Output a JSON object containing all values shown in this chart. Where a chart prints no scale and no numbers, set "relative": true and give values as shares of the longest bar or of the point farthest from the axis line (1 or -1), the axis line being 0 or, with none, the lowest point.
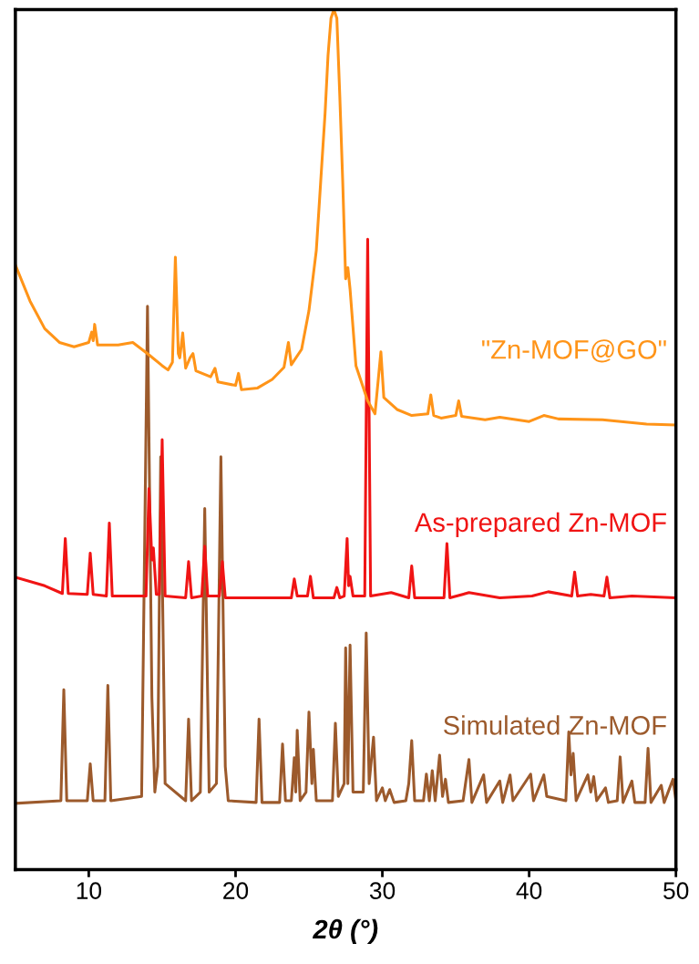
{
  "chart_data": {
    "type": "line",
    "relative": true,
    "xlabel": "2θ (°)",
    "xlim": [
      5,
      50
    ],
    "xticks": [
      10,
      20,
      30,
      40,
      50
    ],
    "grid": false,
    "legend": false,
    "marker": "none",
    "line_style": "solid",
    "series": [
      {
        "name": "Simulated Zn-MOF",
        "color": "#9c5a2c",
        "x": [
          5,
          8.1,
          8.3,
          8.5,
          9.9,
          10.1,
          10.3,
          11.1,
          11.3,
          11.5,
          13.6,
          14.0,
          14.3,
          14.5,
          14.7,
          14.9,
          15.2,
          16.6,
          16.8,
          17.0,
          17.6,
          17.9,
          18.2,
          18.7,
          19.0,
          19.3,
          19.5,
          21.4,
          21.6,
          21.8,
          23.0,
          23.2,
          23.4,
          23.8,
          24.0,
          24.1,
          24.2,
          24.4,
          24.8,
          25.0,
          25.2,
          25.3,
          25.5,
          26.6,
          26.8,
          27.0,
          27.4,
          27.5,
          27.65,
          27.8,
          28.0,
          28.7,
          28.9,
          29.1,
          29.4,
          29.6,
          30.0,
          30.2,
          30.5,
          30.8,
          31.6,
          31.8,
          32.0,
          32.2,
          32.8,
          33.0,
          33.2,
          33.4,
          33.6,
          33.9,
          34.1,
          34.3,
          34.5,
          35.5,
          35.9,
          36.1,
          36.9,
          37.1,
          38.0,
          38.2,
          38.7,
          38.9,
          40.1,
          40.3,
          41.0,
          41.2,
          42.5,
          42.7,
          42.85,
          43.0,
          43.2,
          44.0,
          44.2,
          44.4,
          44.6,
          45.2,
          45.4,
          46.0,
          46.2,
          46.4,
          47.0,
          47.2,
          47.9,
          48.1,
          48.3,
          49.0,
          49.2,
          49.8,
          50
        ],
        "values": [
          0.077,
          0.08,
          0.209,
          0.08,
          0.08,
          0.123,
          0.08,
          0.08,
          0.214,
          0.08,
          0.085,
          0.655,
          0.2,
          0.09,
          0.12,
          0.48,
          0.1,
          0.08,
          0.175,
          0.08,
          0.09,
          0.42,
          0.09,
          0.1,
          0.48,
          0.12,
          0.08,
          0.078,
          0.175,
          0.078,
          0.078,
          0.146,
          0.08,
          0.08,
          0.13,
          0.09,
          0.162,
          0.08,
          0.09,
          0.183,
          0.1,
          0.14,
          0.08,
          0.08,
          0.17,
          0.085,
          0.1,
          0.258,
          0.1,
          0.261,
          0.09,
          0.09,
          0.275,
          0.1,
          0.154,
          0.08,
          0.095,
          0.08,
          0.093,
          0.078,
          0.08,
          0.1,
          0.15,
          0.08,
          0.08,
          0.111,
          0.08,
          0.115,
          0.08,
          0.133,
          0.085,
          0.105,
          0.078,
          0.08,
          0.128,
          0.078,
          0.11,
          0.078,
          0.103,
          0.078,
          0.11,
          0.08,
          0.111,
          0.08,
          0.11,
          0.085,
          0.08,
          0.16,
          0.11,
          0.135,
          0.08,
          0.11,
          0.09,
          0.108,
          0.08,
          0.095,
          0.078,
          0.08,
          0.131,
          0.078,
          0.103,
          0.078,
          0.078,
          0.141,
          0.078,
          0.098,
          0.078,
          0.105,
          0.08
        ]
      },
      {
        "name": "As-prepared Zn-MOF",
        "color": "#f01414",
        "x": [
          5,
          7,
          8.2,
          8.4,
          8.6,
          9.9,
          10.1,
          10.3,
          11.2,
          11.4,
          11.6,
          13.9,
          14.1,
          14.3,
          14.4,
          14.6,
          14.8,
          15.0,
          15.2,
          16.6,
          16.8,
          17.0,
          17.7,
          17.9,
          18.1,
          18.9,
          19.1,
          19.3,
          21.0,
          23.8,
          24.0,
          24.2,
          24.9,
          25.1,
          25.3,
          26.7,
          26.9,
          27.1,
          27.4,
          27.6,
          27.7,
          27.8,
          28.0,
          28.8,
          29.0,
          29.2,
          30.6,
          31.8,
          32.0,
          32.2,
          34.2,
          34.4,
          34.6,
          35.9,
          38,
          40.2,
          41.3,
          42.9,
          43.1,
          43.3,
          44.2,
          45.1,
          45.3,
          45.5,
          47,
          50
        ],
        "values": [
          0.34,
          0.33,
          0.321,
          0.385,
          0.321,
          0.32,
          0.368,
          0.32,
          0.318,
          0.403,
          0.318,
          0.318,
          0.443,
          0.36,
          0.374,
          0.32,
          0.32,
          0.5,
          0.318,
          0.316,
          0.358,
          0.316,
          0.318,
          0.376,
          0.318,
          0.318,
          0.358,
          0.316,
          0.316,
          0.316,
          0.338,
          0.318,
          0.318,
          0.341,
          0.316,
          0.316,
          0.328,
          0.316,
          0.318,
          0.385,
          0.33,
          0.341,
          0.318,
          0.318,
          0.733,
          0.318,
          0.322,
          0.316,
          0.353,
          0.316,
          0.316,
          0.379,
          0.316,
          0.322,
          0.316,
          0.318,
          0.323,
          0.318,
          0.346,
          0.318,
          0.32,
          0.318,
          0.34,
          0.316,
          0.318,
          0.316
        ]
      },
      {
        "name": "\"Zn-MOF@GO\"",
        "color": "#ff9418",
        "x": [
          5,
          6,
          7,
          8,
          9,
          10.0,
          10.2,
          10.3,
          10.4,
          10.6,
          11,
          12,
          13,
          14,
          15,
          15.4,
          15.7,
          15.9,
          16.1,
          16.2,
          16.4,
          16.6,
          16.9,
          17.1,
          17.3,
          18.3,
          18.6,
          18.8,
          20.0,
          20.2,
          20.4,
          21.5,
          22.5,
          23.3,
          23.6,
          23.8,
          24.5,
          25,
          25.5,
          25.8,
          26.1,
          26.3,
          26.5,
          26.7,
          26.9,
          27.1,
          27.3,
          27.5,
          27.65,
          27.8,
          28.2,
          29,
          29.5,
          29.9,
          30.1,
          31,
          32,
          33.1,
          33.3,
          33.5,
          34,
          35.0,
          35.2,
          35.4,
          37,
          38,
          40,
          41,
          42,
          45,
          48,
          50
        ],
        "values": [
          0.703,
          0.661,
          0.629,
          0.613,
          0.608,
          0.613,
          0.625,
          0.615,
          0.634,
          0.61,
          0.61,
          0.61,
          0.613,
          0.6,
          0.586,
          0.581,
          0.59,
          0.712,
          0.6,
          0.595,
          0.624,
          0.583,
          0.595,
          0.6,
          0.58,
          0.573,
          0.583,
          0.567,
          0.563,
          0.577,
          0.558,
          0.56,
          0.57,
          0.584,
          0.613,
          0.587,
          0.605,
          0.65,
          0.72,
          0.8,
          0.88,
          0.947,
          0.99,
          1.0,
          0.99,
          0.9,
          0.8,
          0.687,
          0.7,
          0.675,
          0.586,
          0.545,
          0.53,
          0.602,
          0.549,
          0.535,
          0.528,
          0.53,
          0.552,
          0.528,
          0.525,
          0.528,
          0.545,
          0.527,
          0.523,
          0.526,
          0.521,
          0.528,
          0.524,
          0.523,
          0.518,
          0.517
        ]
      }
    ]
  }
}
